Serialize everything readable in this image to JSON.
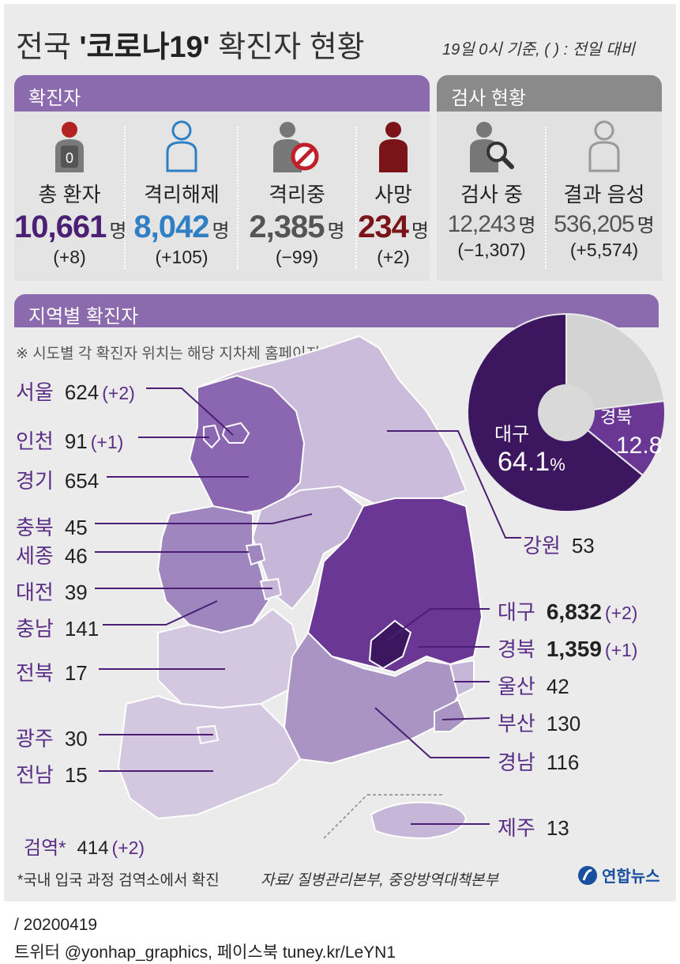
{
  "title": {
    "prefix": "전국 ",
    "highlight": "'코로나19'",
    "suffix": " 확진자 현황"
  },
  "basis": "19일 0시 기준, ( ) : 전일 대비",
  "confirmed_section": {
    "heading": "확진자",
    "stats": [
      {
        "label": "총 환자",
        "value": "10,661",
        "unit": "명",
        "change": "(+8)",
        "color": "#4b1f73",
        "icon": "person-badge-zero-icon",
        "badge": "0"
      },
      {
        "label": "격리해제",
        "value": "8,042",
        "unit": "명",
        "change": "(+105)",
        "color": "#2e7fc4",
        "icon": "person-outline-icon"
      },
      {
        "label": "격리중",
        "value": "2,385",
        "unit": "명",
        "change": "(−99)",
        "color": "#555555",
        "icon": "person-prohibited-icon"
      },
      {
        "label": "사망",
        "value": "234",
        "unit": "명",
        "change": "(+2)",
        "color": "#7b1418",
        "icon": "person-solid-icon"
      }
    ]
  },
  "tests_section": {
    "heading": "검사 현황",
    "stats": [
      {
        "label": "검사 중",
        "value": "12,243",
        "unit": "명",
        "change": "(−1,307)",
        "color": "#555555",
        "icon": "person-magnifier-icon"
      },
      {
        "label": "결과 음성",
        "value": "536,205",
        "unit": "명",
        "change": "(+5,574)",
        "color": "#555555",
        "icon": "person-outline-gray-icon"
      }
    ]
  },
  "region_section": {
    "heading": "지역별 확진자",
    "note": "※ 시도별 각 확진자 위치는 해당 지차체 홈페이지 참조"
  },
  "regions": [
    {
      "name": "서울",
      "value": "624",
      "change": "(+2)"
    },
    {
      "name": "인천",
      "value": "91",
      "change": "(+1)"
    },
    {
      "name": "경기",
      "value": "654",
      "change": ""
    },
    {
      "name": "충북",
      "value": "45",
      "change": ""
    },
    {
      "name": "세종",
      "value": "46",
      "change": ""
    },
    {
      "name": "대전",
      "value": "39",
      "change": ""
    },
    {
      "name": "충남",
      "value": "141",
      "change": ""
    },
    {
      "name": "전북",
      "value": "17",
      "change": ""
    },
    {
      "name": "광주",
      "value": "30",
      "change": ""
    },
    {
      "name": "전남",
      "value": "15",
      "change": ""
    },
    {
      "name": "검역*",
      "value": "414",
      "change": "(+2)"
    },
    {
      "name": "강원",
      "value": "53",
      "change": ""
    },
    {
      "name": "대구",
      "value": "6,832",
      "change": "(+2)"
    },
    {
      "name": "경북",
      "value": "1,359",
      "change": "(+1)"
    },
    {
      "name": "울산",
      "value": "42",
      "change": ""
    },
    {
      "name": "부산",
      "value": "130",
      "change": ""
    },
    {
      "name": "경남",
      "value": "116",
      "change": ""
    },
    {
      "name": "제주",
      "value": "13",
      "change": ""
    }
  ],
  "pie": {
    "slices": [
      {
        "name": "대구",
        "value": 64.1,
        "display": "64.1",
        "unit": "%",
        "color": "#3d1660"
      },
      {
        "name": "경북",
        "value": 12.8,
        "display": "12.8",
        "color": "#6b3794"
      },
      {
        "name": "",
        "value": 23.1,
        "color": "#d3d3d3"
      }
    ]
  },
  "colors": {
    "accent": "#8b6aae",
    "dark_purple": "#3d1660",
    "mid_purple": "#6b3794",
    "light_purple": "#cbbcdb"
  },
  "footnote": "*국내 입국 과정 검역소에서 확진",
  "source": "자료/ 질병관리본부, 중앙방역대책본부",
  "brand": "연합뉴스",
  "date": "/ 20200419",
  "social": "트위터 @yonhap_graphics, 페이스북 tuney.kr/LeYN1"
}
